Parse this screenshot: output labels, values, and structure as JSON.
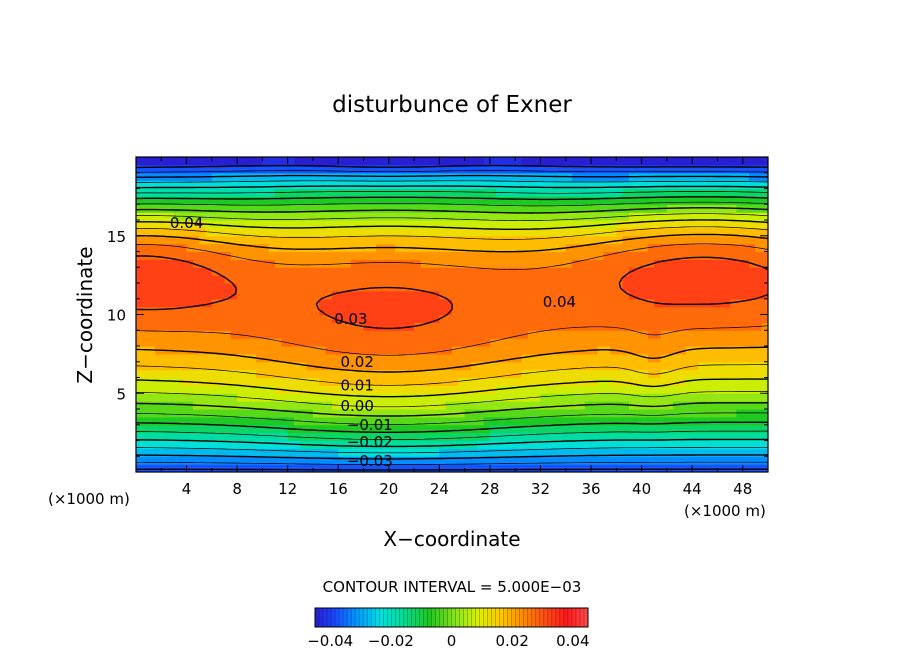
{
  "chart_data": {
    "type": "heatmap",
    "title": "disturbunce of Exner",
    "xlabel": "X−coordinate",
    "ylabel": "Z−coordinate",
    "x_unit": "(×1000 m)",
    "x_unit_right": "(×1000 m)",
    "xlim": [
      0,
      50
    ],
    "ylim": [
      0,
      20
    ],
    "x_ticks": [
      4,
      8,
      12,
      16,
      20,
      24,
      28,
      32,
      36,
      40,
      44,
      48
    ],
    "y_ticks": [
      5,
      10,
      15
    ],
    "contour_interval_text": "CONTOUR INTERVAL = 5.000E−03",
    "contour_interval": 0.005,
    "value_range": [
      -0.045,
      0.045
    ],
    "contour_labels": [
      {
        "text": "0.04",
        "x": 4,
        "z": 15.8
      },
      {
        "text": "0.04",
        "x": 33.5,
        "z": 10.8
      },
      {
        "text": "0.03",
        "x": 17,
        "z": 9.7
      },
      {
        "text": "0.02",
        "x": 17.5,
        "z": 7.0
      },
      {
        "text": "0.01",
        "x": 17.5,
        "z": 5.5
      },
      {
        "text": "0.00",
        "x": 17.5,
        "z": 4.2
      },
      {
        "text": "−0.01",
        "x": 18.5,
        "z": 3.0
      },
      {
        "text": "−0.02",
        "x": 18.5,
        "z": 1.9
      },
      {
        "text": "−0.03",
        "x": 18.5,
        "z": 0.7
      }
    ],
    "colorbar": {
      "tick_values": [
        -0.04,
        -0.02,
        0,
        0.02,
        0.04
      ],
      "tick_labels": [
        "−0.04",
        "−0.02",
        "0",
        "0.02",
        "0.04"
      ]
    }
  }
}
